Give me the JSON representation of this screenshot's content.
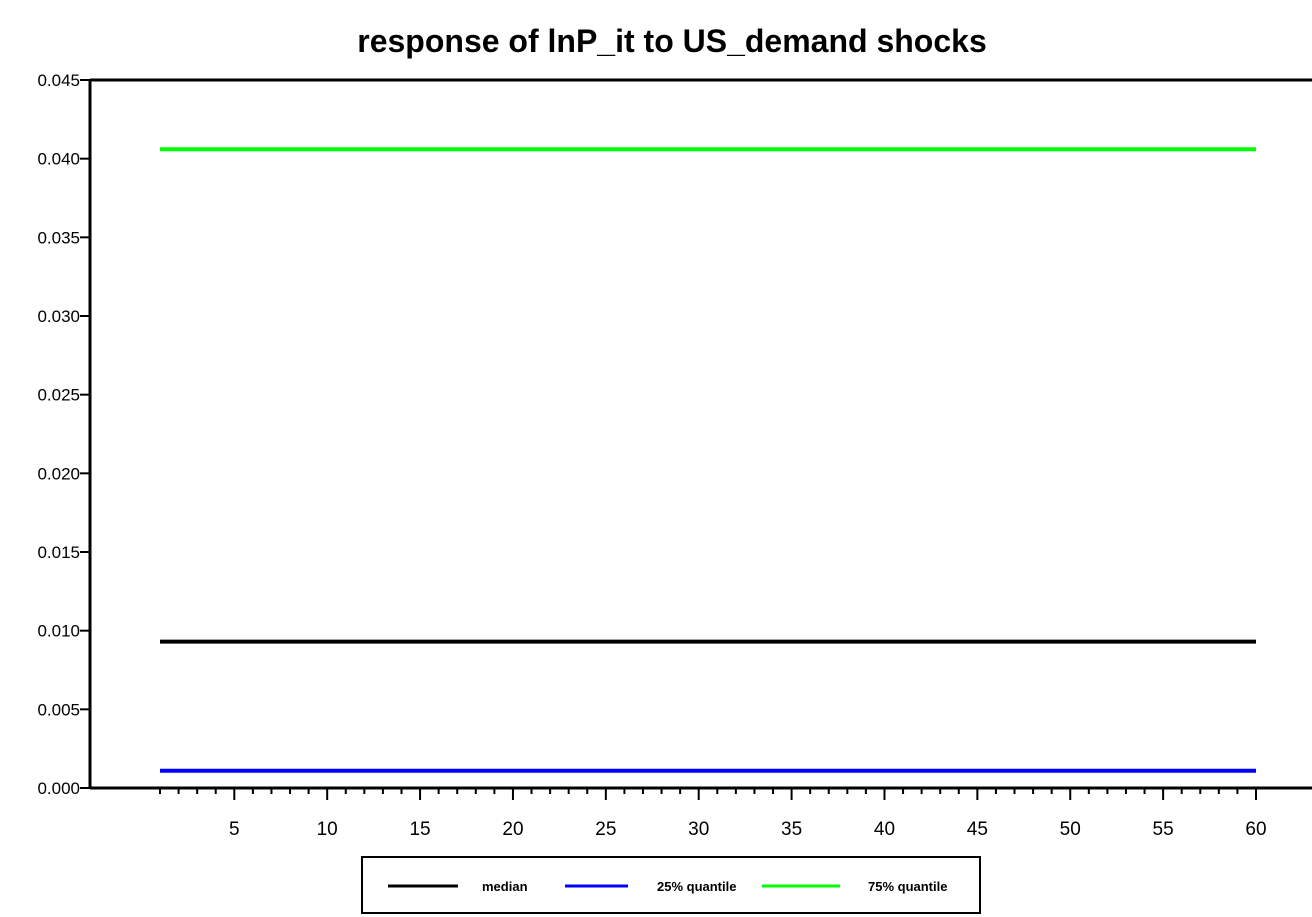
{
  "chart_data": {
    "type": "line",
    "title": "response of lnP_it to US_demand shocks",
    "xlabel": "",
    "ylabel": "",
    "xlim": [
      1,
      60
    ],
    "ylim": [
      0.0,
      0.045
    ],
    "x_ticks": [
      5,
      10,
      15,
      20,
      25,
      30,
      35,
      40,
      45,
      50,
      55,
      60
    ],
    "x_tick_labels": [
      "5",
      "10",
      "15",
      "20",
      "25",
      "30",
      "35",
      "40",
      "45",
      "50",
      "55",
      "60"
    ],
    "y_ticks": [
      0.0,
      0.005,
      0.01,
      0.015,
      0.02,
      0.025,
      0.03,
      0.035,
      0.04,
      0.045
    ],
    "y_tick_labels": [
      "0.000",
      "0.005",
      "0.010",
      "0.015",
      "0.020",
      "0.025",
      "0.030",
      "0.035",
      "0.040",
      "0.045"
    ],
    "grid": false,
    "legend_position": "bottom",
    "series": [
      {
        "name": "median",
        "color": "#000000",
        "x": [
          1,
          60
        ],
        "values": [
          0.0093,
          0.0093
        ]
      },
      {
        "name": "25% quantile",
        "color": "#0000ff",
        "x": [
          1,
          60
        ],
        "values": [
          0.0011,
          0.0011
        ]
      },
      {
        "name": "75% quantile",
        "color": "#00ff00",
        "x": [
          1,
          60
        ],
        "values": [
          0.0406,
          0.0406
        ]
      }
    ]
  }
}
